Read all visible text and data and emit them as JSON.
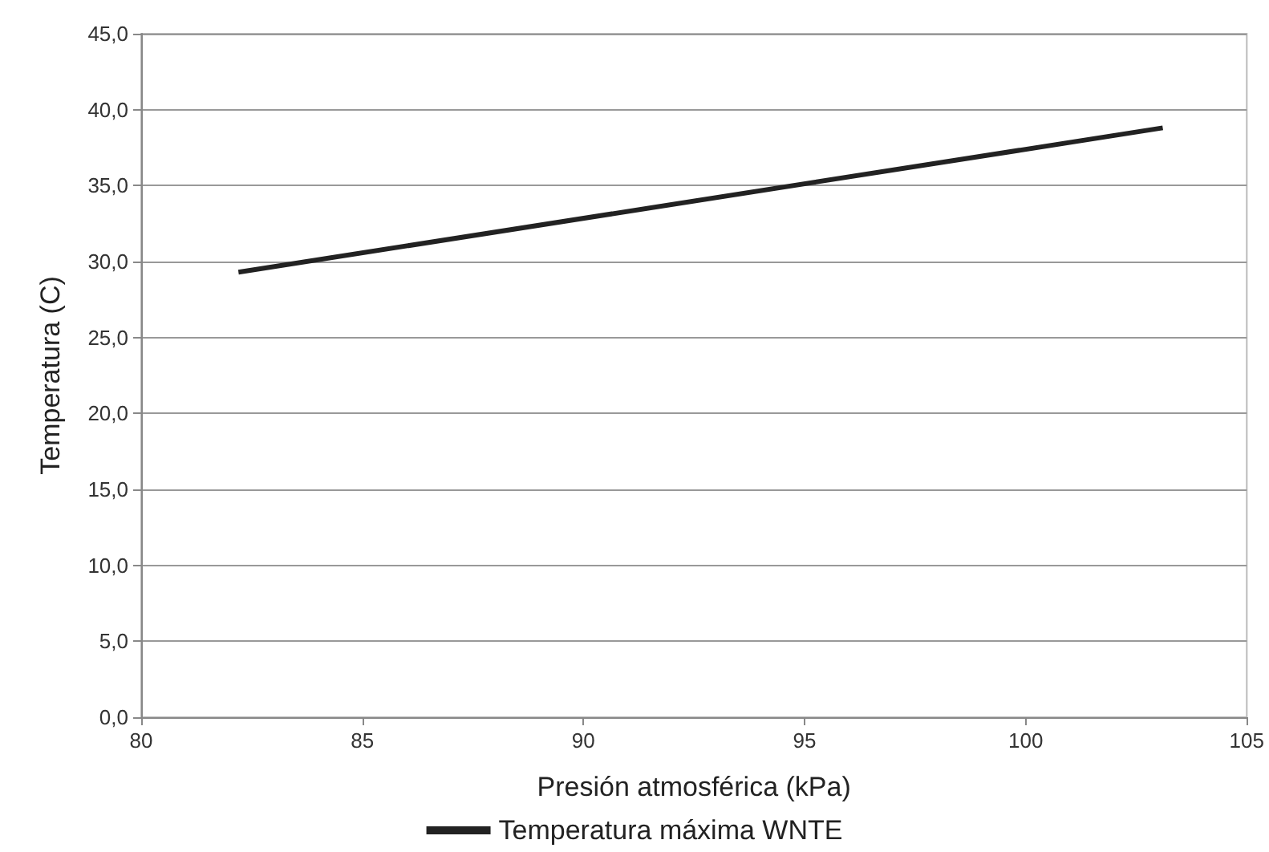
{
  "chart_data": {
    "type": "line",
    "xlabel": "Presión atmosférica (kPa)",
    "ylabel": "Temperatura (C)",
    "x": [
      82.2,
      103.1
    ],
    "series": [
      {
        "name": "Temperatura máxima WNTE",
        "color": "#222222",
        "values": [
          29.3,
          38.8
        ]
      }
    ],
    "xlim": [
      80,
      105
    ],
    "xticks": [
      80,
      85,
      90,
      95,
      100,
      105
    ],
    "ylim": [
      0,
      45
    ],
    "yticks": [
      {
        "value": 0,
        "label": "0,0"
      },
      {
        "value": 5,
        "label": "5,0"
      },
      {
        "value": 10,
        "label": "10,0"
      },
      {
        "value": 15,
        "label": "15,0"
      },
      {
        "value": 20,
        "label": "20,0"
      },
      {
        "value": 25,
        "label": "25,0"
      },
      {
        "value": 30,
        "label": "30,0"
      },
      {
        "value": 35,
        "label": "35,0"
      },
      {
        "value": 40,
        "label": "40,0"
      },
      {
        "value": 45,
        "label": "45,0"
      }
    ],
    "grid": "y",
    "legend": "bottom",
    "marker": "none",
    "line_style": "solid"
  }
}
